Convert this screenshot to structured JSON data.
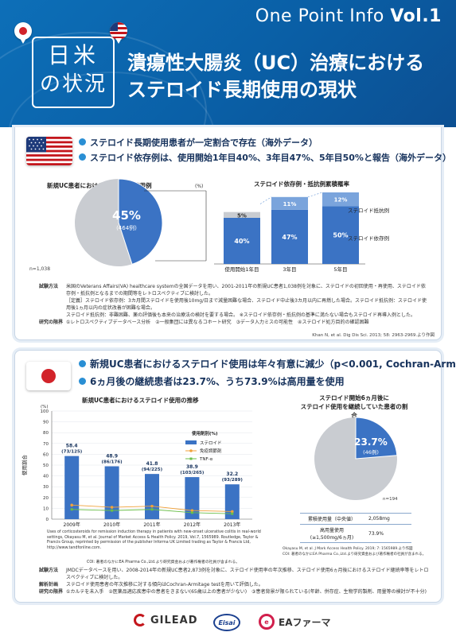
{
  "header": {
    "series_prefix": "One Point Info",
    "series_volume": "Vol.1",
    "badge_line1": "日米",
    "badge_line2": "の状況",
    "title_line1": "潰瘍性大腸炎（UC）治療における",
    "title_line2": "ステロイド長期使用の現状"
  },
  "section_us": {
    "flag_icon": "us-flag-icon",
    "bullets": [
      "ステロイド長期使用患者が一定割合で存在（海外データ）",
      "ステロイド依存例は、使用開始1年目40%、3年目47%、5年目50%と報告（海外データ）"
    ],
    "pie": {
      "title": "新規UC患者におけるステロイド使用例",
      "percent_label": "45%",
      "count_label": "(464例)",
      "n_label": "n=1,038"
    },
    "bar": {
      "title": "ステロイド依存例・抵抗例累積罹率",
      "unit": "(%)",
      "legend_resistant": "ステロイド抵抗例",
      "legend_dependent": "ステロイド依存例"
    },
    "notes": [
      {
        "k": "試験方法",
        "v": "米国のVeterans Affairs(VA) healthcare systemの全国データを用い、2001-2011年の新規UC患者1,038例を対象に、ステロイドの初回使用・再使用、ステロイド依存例・抵抗例となるまでの期間等をレトロスペクティブに検討した。"
      },
      {
        "k": "",
        "v": "［定義］ステロイド依存例：3カ月間ステロイドを使用後10mg/日まで減量困難な場合、ステロイド中止後3カ月以内に再燃した場合。ステロイド抵抗例：ステロイド使用後1ヵ月以内の症状改善が困難な場合。"
      },
      {
        "k": "",
        "v": "ステロイド抵抗例：非難困難、薬の評価後も本来の治療法の検討を要する場合。 ※ステロイド依存例・抵抗例の基準に満たない場合もステロイド再導入例とした。"
      },
      {
        "k": "研究の限界",
        "v": "①レトロスペクティブデータベース分析　②一般集団には異なるコホート研究　③データ入力ミスの可能性　④ステロイド処方目的の確認困難"
      }
    ],
    "citation": "Khan N, et al. Dig Dis Sci. 2013; 58: 2963-2969.より作図"
  },
  "section_jp": {
    "flag_icon": "japan-flag-icon",
    "bullets": [
      "新規UC患者におけるステロイド使用は年々有意に減少（p<0.001, Cochran-Armitage検定）",
      "6ヵ月後の継続患者は23.7%、うち73.9%は高用量を使用"
    ],
    "trend_title": "新規UC患者におけるステロイド使用の推移",
    "ylabel": "使用割合",
    "legend_title": "使用剤別(%)",
    "legend_items": [
      "ステロイド",
      "免疫調節剤",
      "TNF-α"
    ],
    "copyright": "Uses of corticosteroids for remission induction therapy in patients with new-onset ulcerative colitis in real-world settings, Okayasu M, et al. Journal of Market Access & Health Policy. 2019, Vol.7, 1565989. Routledge, Taylor & Francis Group, reprinted by permission of the publisher Informa UK Limited trading as Taylor & Francis Ltd, http://www.tandfonline.com.",
    "coi": "COI: 著者のなかにEA Pharma Co.,Ltd.より研究資金および著作権者の社員が含まれる。",
    "pie_title_line1": "ステロイド開始6ヵ月後に",
    "pie_title_line2": "ステロイド使用を継続していた患者の割合",
    "pie_percent": "23.7%",
    "pie_count": "(46例)",
    "pie_n": "n=194",
    "table": [
      {
        "k": "累積使用量（中央値）",
        "v": "2,058mg"
      },
      {
        "k": "高用量使用\n(≥1,500mg/6ヵ月)",
        "v": "73.9%"
      }
    ],
    "pie_citation": "Okayasu M, et al. J Mark Access Health Policy. 2019; 7: 1565989.より作図",
    "pie_coi": "COI: 著者のなかにEA Pharma Co.,Ltd.より研究資金および著作権者の社員が含まれる。",
    "notes": [
      {
        "k": "試験方法",
        "v": "JMDCデータベースを用い、2008-2014年の新規UC患者2,873例を対象に、ステロイド使用率の年次推移、ステロイド使用6ヵ月後におけるステロイド継続率等をレトロスペクティブに検討した。"
      },
      {
        "k": "解析計画",
        "v": "ステロイド使用患者の年次推移に対する傾向はCochran-Armitage testを用いて評価した。"
      },
      {
        "k": "研究の限界",
        "v": "①カルテを未入手　②医薬品適応疾患中の患者をきまない(65歳以上の患者が少ない)　③患者背景が限られている(年齢、併存症、生物学的製剤、用量等の検討が不十分)"
      }
    ]
  },
  "footer": {
    "gilead": "GILEAD",
    "eisai": "Eisai",
    "ea": "EAファーマ"
  },
  "chart_data": [
    {
      "type": "pie",
      "title": "新規UC患者におけるステロイド使用例",
      "slices": [
        {
          "label": "ステロイド使用例",
          "value": 45,
          "count": 464
        },
        {
          "label": "",
          "value": 55
        }
      ],
      "n": 1038
    },
    {
      "type": "bar",
      "title": "ステロイド依存例・抵抗例累積罹率",
      "categories": [
        "使用開始1年目",
        "3年目",
        "5年目"
      ],
      "series": [
        {
          "name": "ステロイド依存例",
          "values": [
            40,
            47,
            50
          ]
        },
        {
          "name": "ステロイド抵抗例",
          "values": [
            5,
            11,
            12
          ]
        }
      ],
      "stacked": true
    },
    {
      "type": "bar",
      "title": "新規UC患者におけるステロイド使用の推移",
      "categories": [
        "2009年",
        "2010年",
        "2011年",
        "2012年",
        "2013年"
      ],
      "ylabel": "使用割合",
      "ylim": [
        0,
        100
      ],
      "yticks": [
        0,
        10,
        20,
        30,
        40,
        50,
        60,
        70,
        80,
        90,
        100
      ],
      "series": [
        {
          "name": "ステロイド",
          "values": [
            58.4,
            48.9,
            41.8,
            38.9,
            32.2
          ],
          "labels": [
            "58.4\n(73/125)",
            "48.9\n(86/176)",
            "41.8\n(94/225)",
            "38.9\n(103/265)",
            "32.2\n(93/289)"
          ]
        },
        {
          "name": "免疫調節剤",
          "values": [
            13,
            11,
            12,
            8,
            7
          ]
        },
        {
          "name": "TNF-α",
          "values": [
            9,
            8,
            9,
            6,
            5
          ]
        }
      ]
    },
    {
      "type": "pie",
      "title": "ステロイド開始6ヵ月後にステロイド使用を継続していた患者の割合",
      "slices": [
        {
          "label": "継続",
          "value": 23.7,
          "count": 46
        },
        {
          "label": "",
          "value": 76.3
        }
      ],
      "n": 194
    }
  ]
}
